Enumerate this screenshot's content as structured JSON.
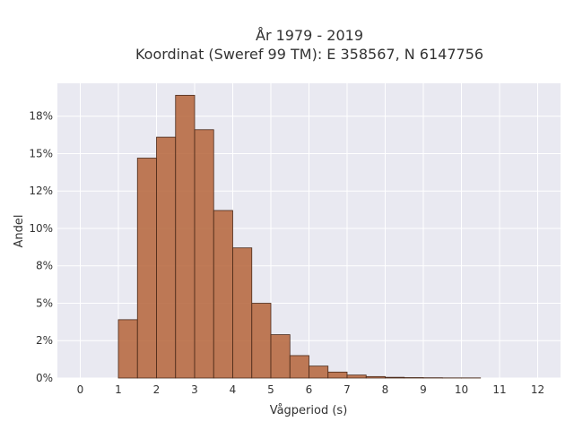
{
  "chart_data": {
    "type": "bar",
    "title_lines": [
      "År 1979 - 2019",
      "Koordinat (Sweref 99 TM): E 358567, N 6147756"
    ],
    "xlabel": "Vågperiod (s)",
    "ylabel": "Andel",
    "xlim": [
      -0.6,
      12.6
    ],
    "ylim": [
      0,
      0.197
    ],
    "x_ticks": [
      0,
      1,
      2,
      3,
      4,
      5,
      6,
      7,
      8,
      9,
      10,
      11,
      12
    ],
    "y_ticks": [
      {
        "value": 0,
        "label": "0%"
      },
      {
        "value": 0.025,
        "label": "2%"
      },
      {
        "value": 0.05,
        "label": "5%"
      },
      {
        "value": 0.075,
        "label": "8%"
      },
      {
        "value": 0.1,
        "label": "10%"
      },
      {
        "value": 0.125,
        "label": "12%"
      },
      {
        "value": 0.15,
        "label": "15%"
      },
      {
        "value": 0.175,
        "label": "18%"
      }
    ],
    "bin_width": 0.5,
    "bins": [
      {
        "start": 1.0,
        "value": 0.039
      },
      {
        "start": 1.5,
        "value": 0.147
      },
      {
        "start": 2.0,
        "value": 0.161
      },
      {
        "start": 2.5,
        "value": 0.189
      },
      {
        "start": 3.0,
        "value": 0.166
      },
      {
        "start": 3.5,
        "value": 0.112
      },
      {
        "start": 4.0,
        "value": 0.087
      },
      {
        "start": 4.5,
        "value": 0.05
      },
      {
        "start": 5.0,
        "value": 0.029
      },
      {
        "start": 5.5,
        "value": 0.015
      },
      {
        "start": 6.0,
        "value": 0.008
      },
      {
        "start": 6.5,
        "value": 0.004
      },
      {
        "start": 7.0,
        "value": 0.002
      },
      {
        "start": 7.5,
        "value": 0.001
      },
      {
        "start": 8.0,
        "value": 0.0005
      },
      {
        "start": 8.5,
        "value": 0.0003
      },
      {
        "start": 9.0,
        "value": 0.0002
      },
      {
        "start": 9.5,
        "value": 0.0001
      },
      {
        "start": 10.0,
        "value": 0.0001
      }
    ],
    "grid": true,
    "colors": {
      "bar_fill": "#b5643a",
      "bar_edge": "#4a2a1a",
      "plot_background": "#e9e9f1",
      "grid": "#ffffff"
    }
  }
}
